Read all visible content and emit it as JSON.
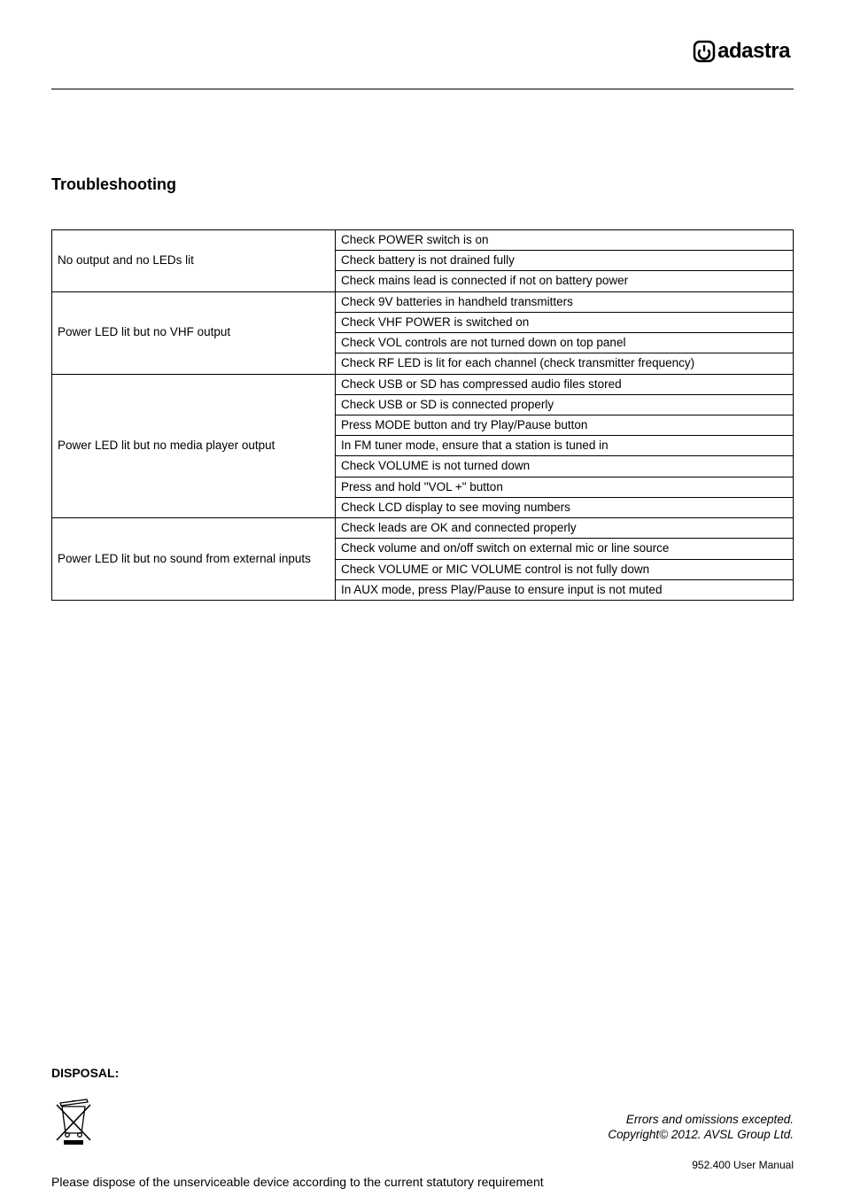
{
  "brand": {
    "text": "adastra"
  },
  "section_title": "Troubleshooting",
  "troubleshooting": {
    "rows": [
      {
        "left": "No output and no LEDs lit",
        "rights": [
          "Check POWER switch is on",
          "Check battery is not drained fully",
          "Check mains lead is connected if not on battery power"
        ]
      },
      {
        "left": "Power LED lit but no VHF output",
        "rights": [
          "Check 9V batteries in handheld transmitters",
          "Check VHF POWER is switched on",
          "Check VOL controls are not turned down on top panel",
          "Check RF LED is lit for each channel (check transmitter frequency)"
        ]
      },
      {
        "left": "Power LED lit but no media player output",
        "rights": [
          "Check USB or SD has compressed audio files stored",
          "Check USB or SD is connected properly",
          "Press MODE button and try Play/Pause button",
          "In FM tuner mode, ensure that a station is tuned in",
          "Check VOLUME is not turned down",
          "Press and hold \"VOL +\" button",
          "Check LCD display to see moving numbers"
        ]
      },
      {
        "left": "Power LED lit but no sound from external inputs",
        "rights": [
          "Check leads are OK and connected properly",
          "Check volume and on/off switch on external mic or line source",
          "Check VOLUME or MIC VOLUME control is not fully down",
          "In AUX mode, press Play/Pause to ensure input is not muted"
        ]
      }
    ]
  },
  "disposal": {
    "title": "DISPOSAL:",
    "text": "Please dispose of the unserviceable device according to the current statutory requirement"
  },
  "footer": {
    "line1": "Errors and omissions excepted.",
    "line2": "Copyright© 2012. AVSL Group Ltd."
  },
  "page_num": "952.400 User Manual"
}
